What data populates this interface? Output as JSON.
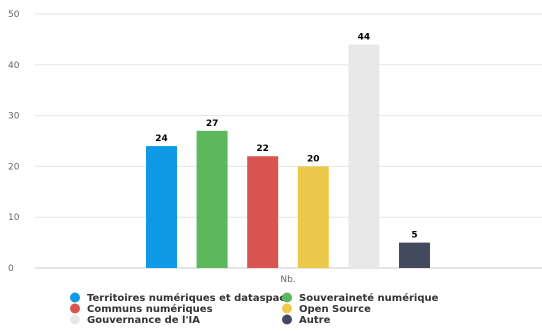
{
  "chart_data": {
    "type": "bar",
    "categories": [
      "Nb."
    ],
    "ylim": [
      0,
      50
    ],
    "yticks": [
      0,
      10,
      20,
      30,
      40,
      50
    ],
    "grid": true,
    "legend_position": "bottom",
    "series": [
      {
        "name": "Territoires numériques et dataspace",
        "values": [
          24
        ],
        "color": "#0d99e6"
      },
      {
        "name": "Souveraineté numérique",
        "values": [
          27
        ],
        "color": "#5cb85c"
      },
      {
        "name": "Communs numériques",
        "values": [
          22
        ],
        "color": "#d9534f"
      },
      {
        "name": "Open Source",
        "values": [
          20
        ],
        "color": "#ecc94b"
      },
      {
        "name": "Gouvernance de l'IA",
        "values": [
          44
        ],
        "color": "#e8e8e8"
      },
      {
        "name": "Autre",
        "values": [
          5
        ],
        "color": "#444a5e"
      }
    ]
  }
}
